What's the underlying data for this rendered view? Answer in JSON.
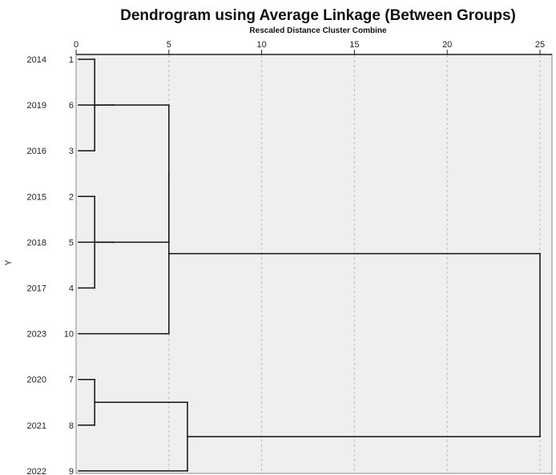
{
  "chart_data": {
    "type": "dendrogram",
    "title": "Dendrogram using Average Linkage (Between Groups)",
    "subtitle": "Rescaled Distance Cluster Combine",
    "xlabel": "Rescaled Distance Cluster Combine",
    "ylabel": "Y",
    "xlim": [
      0,
      25
    ],
    "xticks": [
      0,
      5,
      10,
      15,
      20,
      25
    ],
    "grid": true,
    "leaves": [
      {
        "case": "1",
        "label": "2014"
      },
      {
        "case": "6",
        "label": "2019"
      },
      {
        "case": "3",
        "label": "2016"
      },
      {
        "case": "2",
        "label": "2015"
      },
      {
        "case": "5",
        "label": "2018"
      },
      {
        "case": "4",
        "label": "2017"
      },
      {
        "case": "10",
        "label": "2023"
      },
      {
        "case": "7",
        "label": "2020"
      },
      {
        "case": "8",
        "label": "2021"
      },
      {
        "case": "9",
        "label": "2022"
      }
    ],
    "merges": [
      {
        "id": "A",
        "children": [
          "1",
          "3"
        ],
        "distance": 1
      },
      {
        "id": "B",
        "children": [
          "2",
          "4"
        ],
        "distance": 1
      },
      {
        "id": "C",
        "children": [
          "7",
          "8"
        ],
        "distance": 1
      },
      {
        "id": "D",
        "children": [
          "6",
          "A"
        ],
        "distance": 2
      },
      {
        "id": "E",
        "children": [
          "5",
          "B"
        ],
        "distance": 2
      },
      {
        "id": "F",
        "children": [
          "D",
          "E"
        ],
        "distance": 5
      },
      {
        "id": "G",
        "children": [
          "F",
          "10"
        ],
        "distance": 5
      },
      {
        "id": "H",
        "children": [
          "C",
          "9"
        ],
        "distance": 6
      },
      {
        "id": "I",
        "children": [
          "G",
          "H"
        ],
        "distance": 25
      }
    ]
  },
  "colors": {
    "plot_bg": "#efefef",
    "line": "#111111",
    "grid": "#bdbdbd"
  }
}
